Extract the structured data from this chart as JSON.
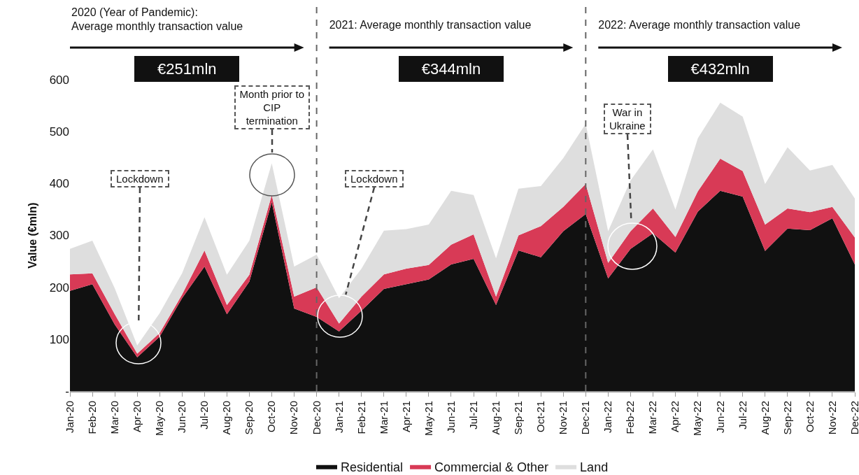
{
  "chart_data": {
    "type": "area",
    "stacked": true,
    "ylabel": "Value (€mln)",
    "categories": [
      "Jan-20",
      "Feb-20",
      "Mar-20",
      "Apr-20",
      "May-20",
      "Jun-20",
      "Jul-20",
      "Aug-20",
      "Sep-20",
      "Oct-20",
      "Nov-20",
      "Dec-20",
      "Jan-21",
      "Feb-21",
      "Mar-21",
      "Apr-21",
      "May-21",
      "Jun-21",
      "Jul-21",
      "Aug-21",
      "Sep-21",
      "Oct-21",
      "Nov-21",
      "Dec-21",
      "Jan-22",
      "Feb-22",
      "Mar-22",
      "Apr-22",
      "May-22",
      "Jun-22",
      "Jul-22",
      "Aug-22",
      "Sep-22",
      "Oct-22",
      "Nov-22",
      "Dec-22"
    ],
    "series": [
      {
        "name": "Residential",
        "color": "#111111",
        "values": [
          193,
          206,
          128,
          65,
          105,
          179,
          240,
          148,
          211,
          364,
          159,
          143,
          115,
          155,
          197,
          206,
          215,
          244,
          255,
          166,
          271,
          258,
          308,
          341,
          217,
          274,
          304,
          267,
          346,
          386,
          375,
          270,
          313,
          310,
          333,
          244
        ]
      },
      {
        "name": "Commercial & Other",
        "color": "#d83a56",
        "values": [
          32,
          21,
          20,
          7,
          7,
          7,
          31,
          18,
          13,
          14,
          23,
          57,
          15,
          27,
          28,
          30,
          28,
          38,
          47,
          16,
          29,
          60,
          47,
          58,
          30,
          34,
          48,
          30,
          39,
          62,
          49,
          51,
          39,
          35,
          22,
          52
        ]
      },
      {
        "name": "Land",
        "color": "#dedede",
        "values": [
          49,
          63,
          50,
          16,
          38,
          41,
          64,
          58,
          66,
          61,
          58,
          63,
          49,
          54,
          84,
          76,
          78,
          104,
          76,
          74,
          90,
          77,
          94,
          116,
          61,
          98,
          114,
          53,
          102,
          108,
          105,
          78,
          118,
          80,
          81,
          75
        ]
      }
    ],
    "ylim": [
      0,
      600
    ],
    "yticks": [
      {
        "value": 0,
        "label": "-"
      },
      100,
      200,
      300,
      400,
      500,
      600
    ],
    "grid": false,
    "legend": "bottom",
    "ref_lines": [
      {
        "axis": "x",
        "value": "Dec-20",
        "color": "#666666",
        "line_style": "dashed"
      },
      {
        "axis": "x",
        "value": "Dec-21",
        "color": "#666666",
        "line_style": "dashed"
      }
    ],
    "annotations": [
      "2020 (Year of Pandemic):\nAverage monthly transaction value",
      "€251mln",
      "2021: Average monthly transaction value",
      "€344mln",
      "2022: Average monthly transaction value",
      "€432mln",
      "Lockdown",
      "Month prior to\nCIP\ntermination",
      "Lockdown",
      "War in\nUkraine"
    ]
  }
}
